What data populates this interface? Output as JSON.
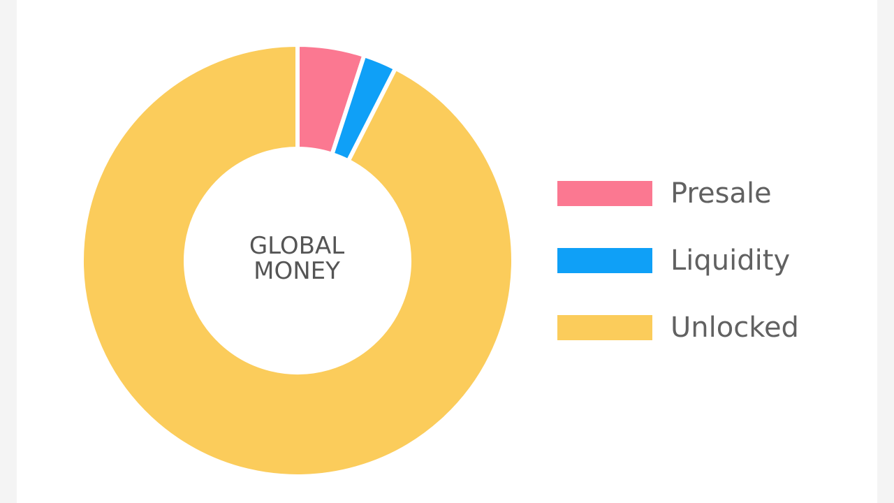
{
  "center_label": {
    "line1": "GLOBAL",
    "line2": "MONEY"
  },
  "chart_data": {
    "type": "pie",
    "donut": true,
    "categories": [
      "Presale",
      "Liquidity",
      "Unlocked"
    ],
    "values": [
      5,
      2.5,
      92.5
    ],
    "colors": [
      "#fb7891",
      "#0fa0f7",
      "#fbcc5b"
    ],
    "legend_position": "right"
  }
}
